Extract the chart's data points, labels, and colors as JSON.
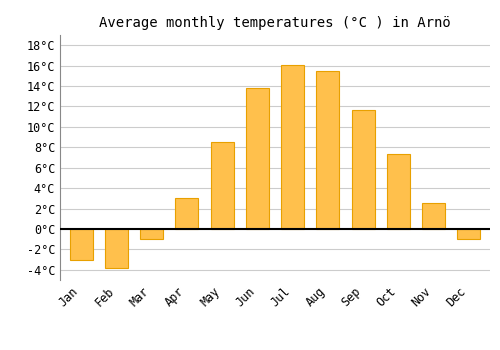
{
  "months": [
    "Jan",
    "Feb",
    "Mar",
    "Apr",
    "May",
    "Jun",
    "Jul",
    "Aug",
    "Sep",
    "Oct",
    "Nov",
    "Dec"
  ],
  "temperatures": [
    -3.0,
    -3.8,
    -1.0,
    3.0,
    8.5,
    13.8,
    16.1,
    15.5,
    11.7,
    7.3,
    2.5,
    -1.0
  ],
  "bar_color": "#FFC04C",
  "bar_edge_color": "#E8A000",
  "title": "Average monthly temperatures (°C ) in Arnö",
  "ylim": [
    -5,
    19
  ],
  "yticks": [
    -4,
    -2,
    0,
    2,
    4,
    6,
    8,
    10,
    12,
    14,
    16,
    18
  ],
  "background_color": "#ffffff",
  "grid_color": "#cccccc",
  "title_fontsize": 10,
  "tick_fontsize": 8.5,
  "title_font": "monospace",
  "tick_font": "monospace",
  "bar_width": 0.65
}
